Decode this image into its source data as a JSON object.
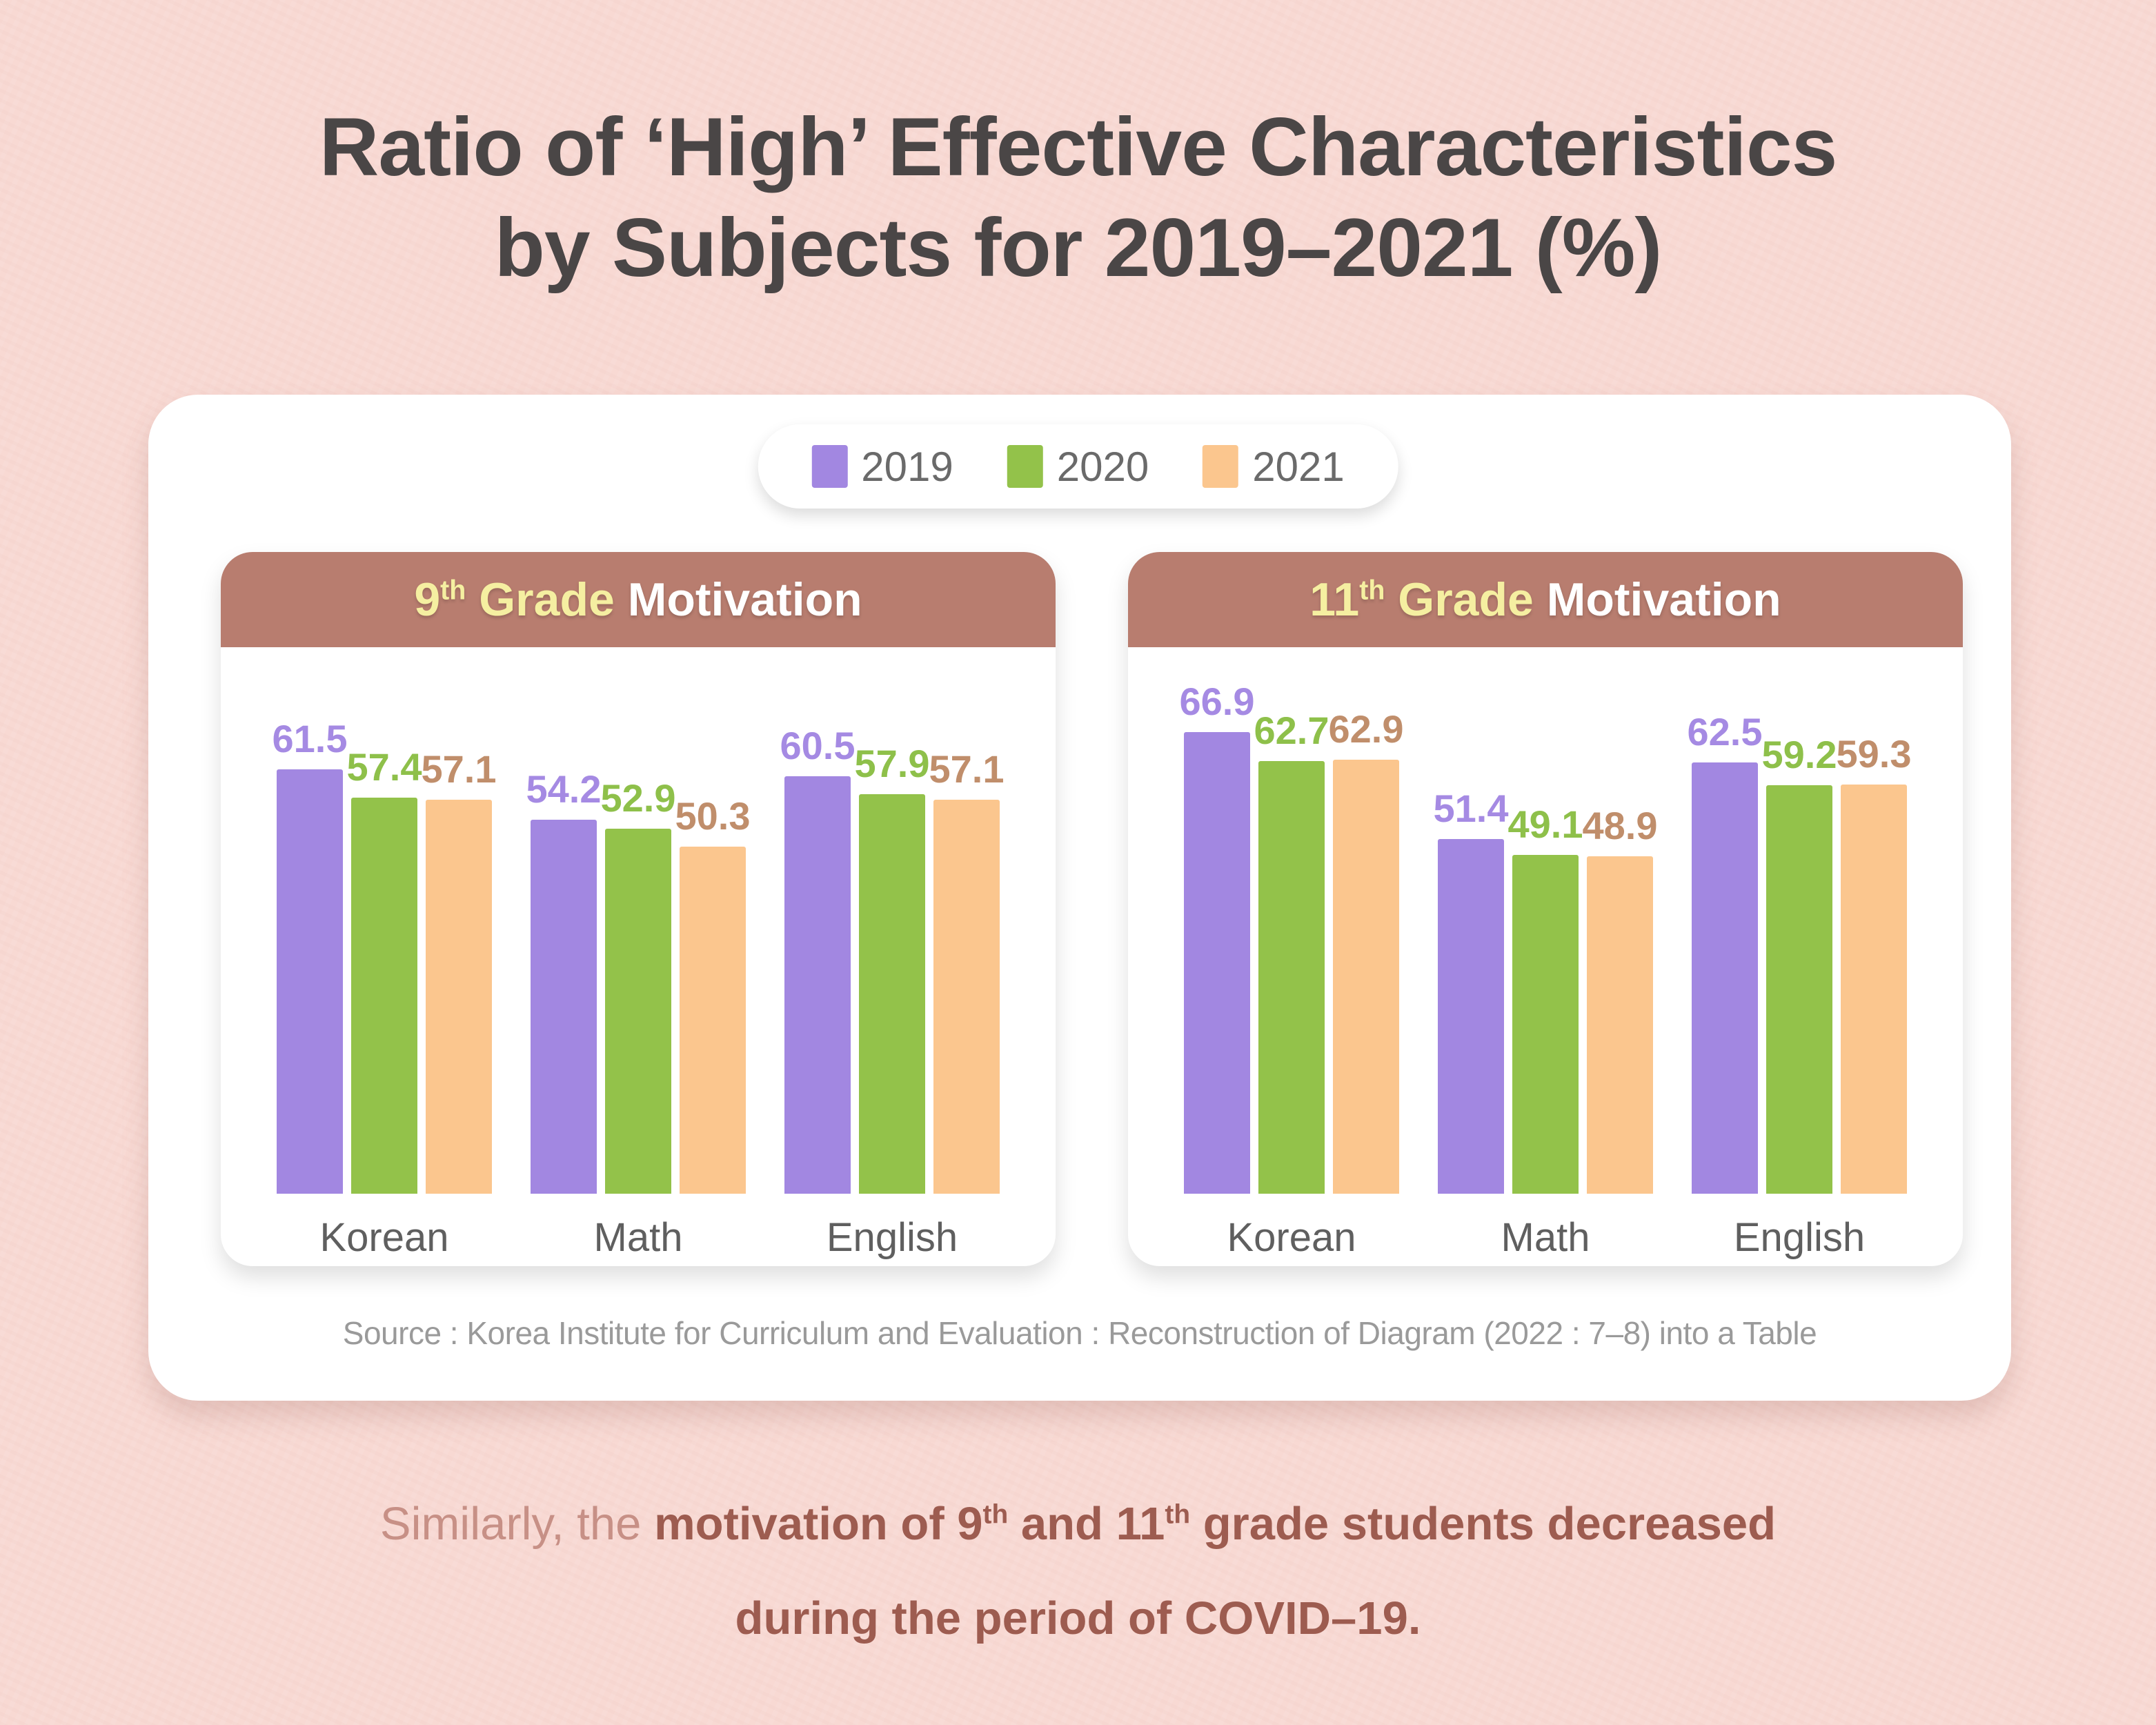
{
  "title": {
    "line1": "Ratio of ‘High’ Effective Characteristics",
    "line2": "by Subjects for 2019–2021 (%)"
  },
  "legend": {
    "items": [
      {
        "label": "2019",
        "color": "#a287e1"
      },
      {
        "label": "2020",
        "color": "#93c24a"
      },
      {
        "label": "2021",
        "color": "#fbc68e"
      }
    ]
  },
  "series_label_colors": [
    "#a58ae3",
    "#8ec04a",
    "#c08e6b"
  ],
  "charts": [
    {
      "header": {
        "num": "9",
        "sup": "th",
        "grade": " Grade",
        "rest": " Motivation"
      }
    },
    {
      "header": {
        "num": "11",
        "sup": "th",
        "grade": " Grade",
        "rest": " Motivation"
      }
    }
  ],
  "chart_data": [
    {
      "type": "bar",
      "title": "9th Grade Motivation",
      "categories": [
        "Korean",
        "Math",
        "English"
      ],
      "series": [
        {
          "name": "2019",
          "values": [
            61.5,
            54.2,
            60.5
          ]
        },
        {
          "name": "2020",
          "values": [
            57.4,
            52.9,
            57.9
          ]
        },
        {
          "name": "2021",
          "values": [
            57.1,
            50.3,
            57.1
          ]
        }
      ],
      "ylim": [
        0,
        70
      ],
      "grid": false,
      "legend_position": "top",
      "value_labels": true
    },
    {
      "type": "bar",
      "title": "11th Grade Motivation",
      "categories": [
        "Korean",
        "Math",
        "English"
      ],
      "series": [
        {
          "name": "2019",
          "values": [
            66.9,
            51.4,
            62.5
          ]
        },
        {
          "name": "2020",
          "values": [
            62.7,
            49.1,
            59.2
          ]
        },
        {
          "name": "2021",
          "values": [
            62.9,
            48.9,
            59.3
          ]
        }
      ],
      "ylim": [
        0,
        70
      ],
      "grid": false,
      "legend_position": "top",
      "value_labels": true
    }
  ],
  "source": "Source : Korea Institute for Curriculum and Evaluation : Reconstruction of Diagram (2022 : 7–8) into a Table",
  "footer": {
    "light": "Similarly, the ",
    "b1": "motivation of 9",
    "sup1": "th",
    "b2": " and 11",
    "sup2": "th",
    "b3": " grade students decreased",
    "line2": "during the period of COVID–19."
  },
  "colors": {
    "background": "#f8d9d3",
    "title_text": "#4a4646",
    "card_header_bg": "#b87d6f",
    "card_header_yellow": "#f5efa1",
    "card_header_white": "#ffffff",
    "footer_light": "#c79086",
    "footer_dark": "#9d5c50",
    "category_label": "#5f5f5f",
    "source_text": "#9a9a9a"
  }
}
